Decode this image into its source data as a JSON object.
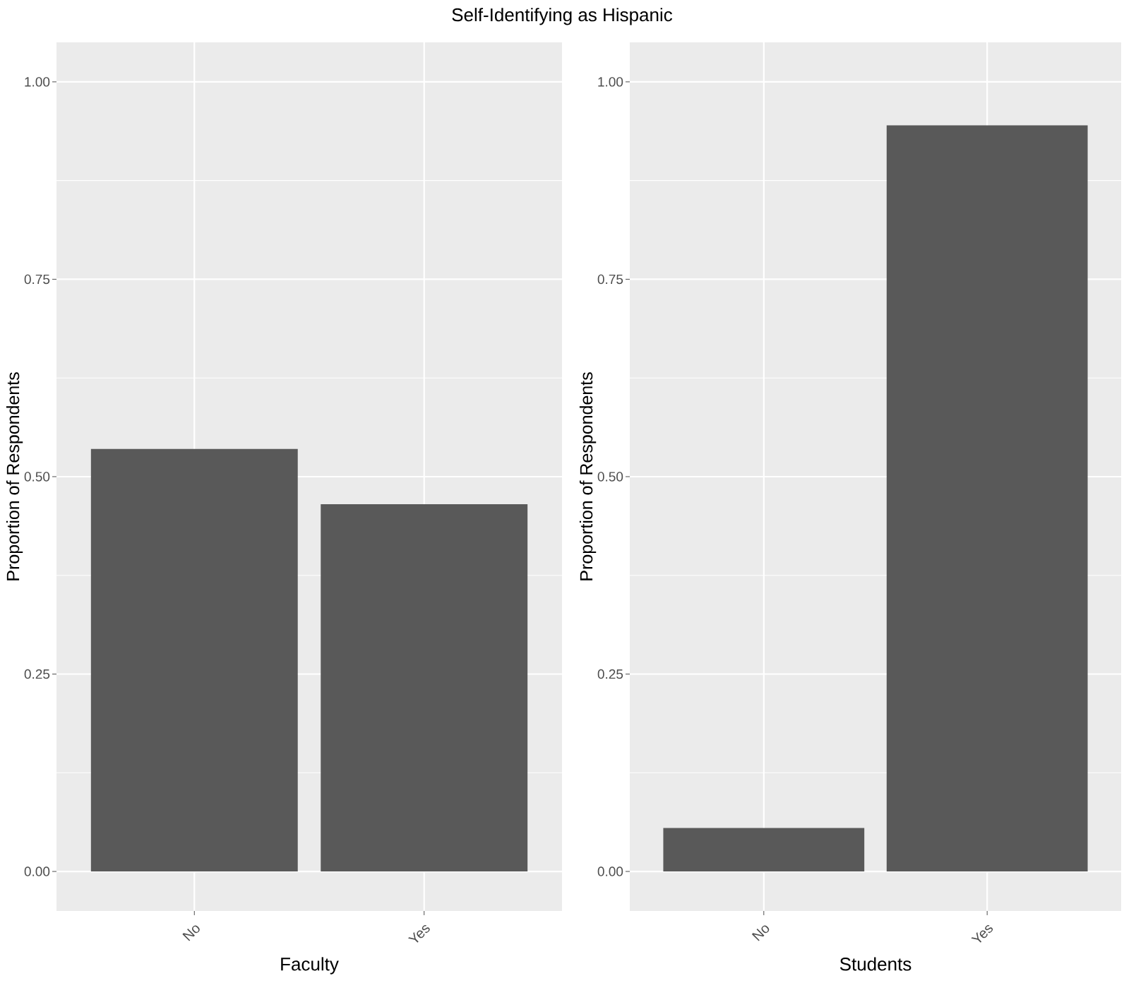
{
  "chart_data": [
    {
      "type": "bar",
      "title": "Self-Identifying as Hispanic",
      "xlabel": "Faculty",
      "ylabel": "Proportion of Respondents",
      "categories": [
        "No",
        "Yes"
      ],
      "values": [
        0.535,
        0.465
      ],
      "color": "#595959",
      "ylim": [
        -0.05,
        1.05
      ],
      "yticks": [
        {
          "value": 0,
          "label": "0.00"
        },
        {
          "value": 0.25,
          "label": "0.25"
        },
        {
          "value": 0.5,
          "label": "0.50"
        },
        {
          "value": 0.75,
          "label": "0.75"
        },
        {
          "value": 1,
          "label": "1.00"
        }
      ],
      "grid": true
    },
    {
      "type": "bar",
      "xlabel": "Students",
      "ylabel": "Proportion of Respondents",
      "categories": [
        "No",
        "Yes"
      ],
      "values": [
        0.055,
        0.945
      ],
      "color": "#595959",
      "ylim": [
        -0.05,
        1.05
      ],
      "yticks": [
        {
          "value": 0,
          "label": "0.00"
        },
        {
          "value": 0.25,
          "label": "0.25"
        },
        {
          "value": 0.5,
          "label": "0.50"
        },
        {
          "value": 0.75,
          "label": "0.75"
        },
        {
          "value": 1,
          "label": "1.00"
        }
      ],
      "grid": true
    }
  ]
}
